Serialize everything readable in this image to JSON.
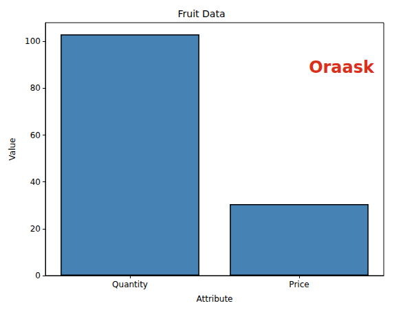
{
  "chart_data": {
    "type": "bar",
    "title": "Fruit Data",
    "x_label": "Attribute",
    "y_label": "Value",
    "categories": [
      "Quantity",
      "Price"
    ],
    "values": [
      103,
      30.5
    ],
    "color": "#4682b4",
    "ylim": [
      0,
      108
    ],
    "yticks": [
      0,
      20,
      40,
      60,
      80,
      100
    ],
    "grid": false,
    "annotations": [
      "Oraask"
    ]
  }
}
